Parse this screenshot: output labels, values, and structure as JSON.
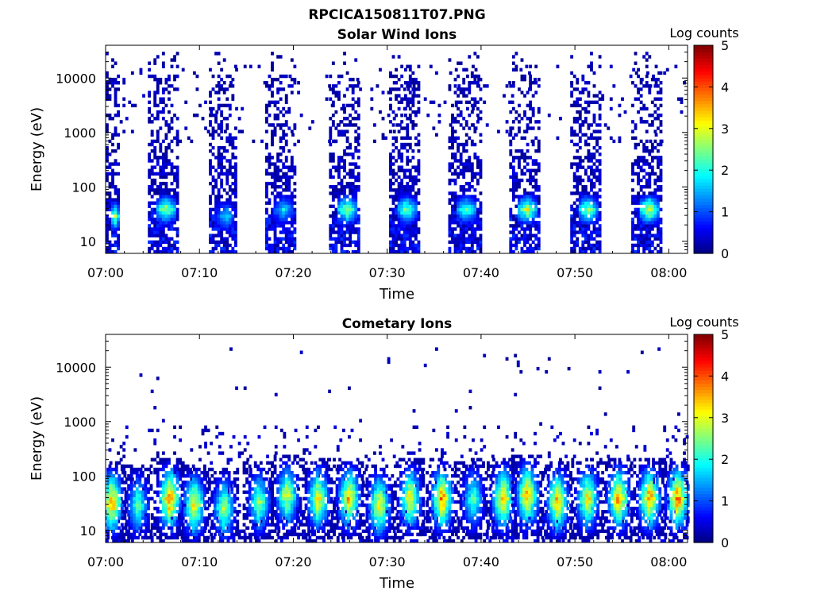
{
  "figure": {
    "title": "RPCICA150811T07.PNG"
  },
  "chart_data": [
    {
      "type": "heatmap",
      "title": "Solar Wind Ions",
      "xlabel": "Time",
      "ylabel": "Energy (eV)",
      "x_range": [
        "07:00",
        "08:02"
      ],
      "x_ticks": [
        "07:00",
        "07:10",
        "07:20",
        "07:30",
        "07:40",
        "07:50",
        "08:00"
      ],
      "y_scale": "log",
      "y_range": [
        6,
        40000
      ],
      "y_ticks": [
        "10",
        "100",
        "1000",
        "10000"
      ],
      "colorbar": {
        "label": "Log counts",
        "range": [
          0,
          5
        ],
        "ticks": [
          "0",
          "1",
          "2",
          "3",
          "4",
          "5"
        ],
        "colormap": "jet"
      },
      "scans": [
        {
          "start_min": 0.0,
          "end_min": 1.5,
          "peak_energy_ev": 30,
          "peak_log_counts": 3.0
        },
        {
          "start_min": 4.5,
          "end_min": 7.7,
          "peak_energy_ev": 40,
          "peak_log_counts": 3.0
        },
        {
          "start_min": 11.0,
          "end_min": 14.0,
          "peak_energy_ev": 30,
          "peak_log_counts": 2.0
        },
        {
          "start_min": 17.0,
          "end_min": 20.3,
          "peak_energy_ev": 40,
          "peak_log_counts": 2.0
        },
        {
          "start_min": 23.8,
          "end_min": 27.0,
          "peak_energy_ev": 40,
          "peak_log_counts": 3.0
        },
        {
          "start_min": 30.2,
          "end_min": 33.3,
          "peak_energy_ev": 40,
          "peak_log_counts": 2.8
        },
        {
          "start_min": 36.5,
          "end_min": 39.8,
          "peak_energy_ev": 40,
          "peak_log_counts": 2.5
        },
        {
          "start_min": 43.0,
          "end_min": 46.2,
          "peak_energy_ev": 40,
          "peak_log_counts": 3.2
        },
        {
          "start_min": 49.5,
          "end_min": 52.6,
          "peak_energy_ev": 40,
          "peak_log_counts": 3.0
        },
        {
          "start_min": 56.0,
          "end_min": 59.2,
          "peak_energy_ev": 40,
          "peak_log_counts": 3.3
        }
      ]
    },
    {
      "type": "heatmap",
      "title": "Cometary Ions",
      "xlabel": "Time",
      "ylabel": "Energy (eV)",
      "x_range": [
        "07:00",
        "08:02"
      ],
      "x_ticks": [
        "07:00",
        "07:10",
        "07:20",
        "07:30",
        "07:40",
        "07:50",
        "08:00"
      ],
      "y_scale": "log",
      "y_range": [
        6,
        40000
      ],
      "y_ticks": [
        "10",
        "100",
        "1000",
        "10000"
      ],
      "colorbar": {
        "label": "Log counts",
        "range": [
          0,
          5
        ],
        "ticks": [
          "0",
          "1",
          "2",
          "3",
          "4",
          "5"
        ],
        "colormap": "jet"
      },
      "bursts": [
        {
          "center_min": 0.5,
          "energy_ev": 35,
          "log_counts": 4.0
        },
        {
          "center_min": 3.3,
          "energy_ev": 30,
          "log_counts": 2.5
        },
        {
          "center_min": 6.7,
          "energy_ev": 40,
          "log_counts": 4.2
        },
        {
          "center_min": 9.3,
          "energy_ev": 30,
          "log_counts": 3.5
        },
        {
          "center_min": 12.5,
          "energy_ev": 25,
          "log_counts": 3.0
        },
        {
          "center_min": 16.2,
          "energy_ev": 35,
          "log_counts": 2.8
        },
        {
          "center_min": 19.2,
          "energy_ev": 45,
          "log_counts": 3.3
        },
        {
          "center_min": 22.5,
          "energy_ev": 40,
          "log_counts": 3.5
        },
        {
          "center_min": 25.8,
          "energy_ev": 40,
          "log_counts": 3.8
        },
        {
          "center_min": 29.0,
          "energy_ev": 30,
          "log_counts": 3.5
        },
        {
          "center_min": 32.3,
          "energy_ev": 40,
          "log_counts": 3.5
        },
        {
          "center_min": 35.7,
          "energy_ev": 40,
          "log_counts": 4.0
        },
        {
          "center_min": 39.0,
          "energy_ev": 40,
          "log_counts": 2.5
        },
        {
          "center_min": 42.2,
          "energy_ev": 40,
          "log_counts": 3.8
        },
        {
          "center_min": 44.8,
          "energy_ev": 45,
          "log_counts": 4.0
        },
        {
          "center_min": 48.0,
          "energy_ev": 35,
          "log_counts": 3.8
        },
        {
          "center_min": 51.2,
          "energy_ev": 40,
          "log_counts": 3.5
        },
        {
          "center_min": 54.5,
          "energy_ev": 40,
          "log_counts": 4.0
        },
        {
          "center_min": 57.8,
          "energy_ev": 40,
          "log_counts": 4.0
        },
        {
          "center_min": 60.8,
          "energy_ev": 40,
          "log_counts": 4.2
        }
      ]
    }
  ]
}
